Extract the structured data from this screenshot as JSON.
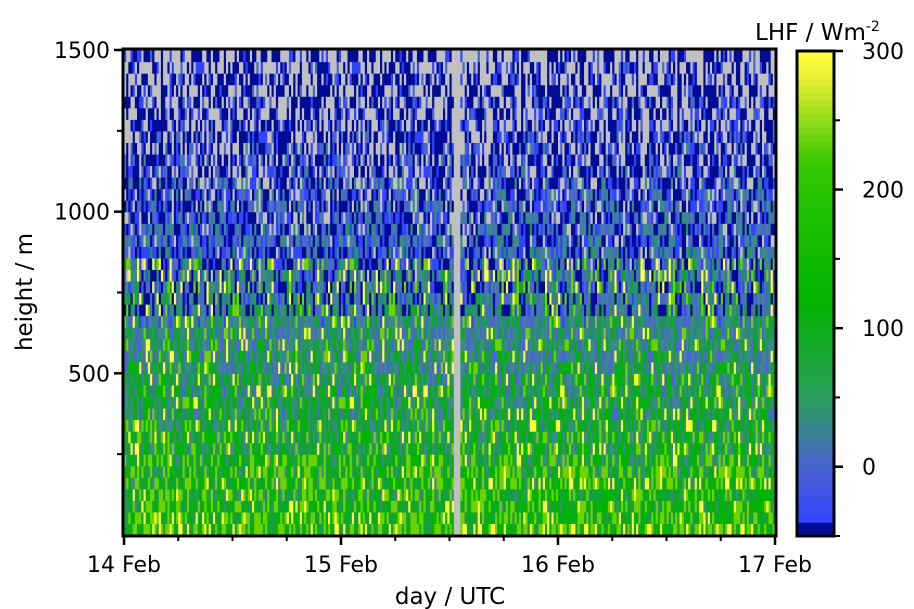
{
  "chart_data": {
    "type": "heatmap",
    "title": "",
    "xlabel": "day / UTC",
    "ylabel": "height / m",
    "colorbar_label": "LHF / Wm",
    "colorbar_label_sup": "-2",
    "x_ticks": [
      "14 Feb",
      "15 Feb",
      "16 Feb",
      "17 Feb"
    ],
    "y_ticks": [
      "500",
      "1000",
      "1500"
    ],
    "colorbar_ticks": [
      "0",
      "100",
      "200",
      "300"
    ],
    "xlim": [
      "14 Feb",
      "17 Feb"
    ],
    "ylim": [
      0,
      1500
    ],
    "clim": [
      -50,
      300
    ],
    "colormap": [
      "#000c96",
      "#3344ff",
      "#4a68cc",
      "#3a8a8a",
      "#14a03c",
      "#00b400",
      "#6ed200",
      "#ffff3c"
    ],
    "missing_color": "#c0c0c0",
    "grid": false
  }
}
